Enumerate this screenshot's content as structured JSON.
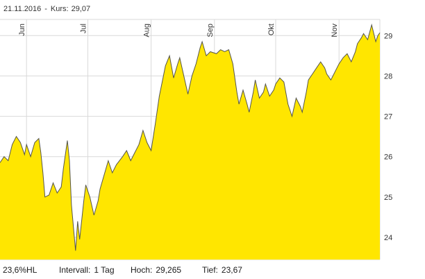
{
  "header": {
    "date": "21.11.2016",
    "separator": "-",
    "price_label": "Kurs:",
    "price_value": "29,07"
  },
  "footer": {
    "hl_range": "23,6%HL",
    "interval_label": "Intervall:",
    "interval_value": "1 Tag",
    "high_label": "Hoch:",
    "high_value": "29,265",
    "low_label": "Tief:",
    "low_value": "23,67"
  },
  "chart_data": {
    "type": "area",
    "title": "",
    "xlabel": "",
    "ylabel": "",
    "grid": true,
    "month_labels_vertical": true,
    "y_axis_position": "right",
    "x_domain": [
      0,
      186
    ],
    "y_domain": [
      23.45,
      29.4
    ],
    "y_ticks": [
      24,
      25,
      26,
      27,
      28,
      29
    ],
    "month_ticks": [
      {
        "label": "Jun",
        "t": 13
      },
      {
        "label": "Jul",
        "t": 43
      },
      {
        "label": "Aug",
        "t": 74
      },
      {
        "label": "Sep",
        "t": 105
      },
      {
        "label": "Okt",
        "t": 135
      },
      {
        "label": "Nov",
        "t": 166
      }
    ],
    "high": 29.265,
    "low": 23.67,
    "last": 29.07,
    "last_date": "21.11.2016",
    "interval": "1 Tag",
    "colors": {
      "area_fill": "#ffe600",
      "line": "#55554d",
      "grid": "#d9d9d9",
      "text": "#333333"
    },
    "series": [
      {
        "name": "Kurs",
        "points": [
          [
            0,
            25.85
          ],
          [
            2,
            26.0
          ],
          [
            4,
            25.9
          ],
          [
            6,
            26.3
          ],
          [
            8,
            26.5
          ],
          [
            10,
            26.35
          ],
          [
            12,
            26.05
          ],
          [
            13,
            26.3
          ],
          [
            15,
            26.0
          ],
          [
            17,
            26.35
          ],
          [
            19,
            26.45
          ],
          [
            20,
            26.1
          ],
          [
            21,
            25.6
          ],
          [
            22,
            25.0
          ],
          [
            24,
            25.05
          ],
          [
            26,
            25.35
          ],
          [
            28,
            25.1
          ],
          [
            30,
            25.25
          ],
          [
            31,
            25.7
          ],
          [
            33,
            26.4
          ],
          [
            34,
            25.9
          ],
          [
            35,
            24.8
          ],
          [
            37,
            23.67
          ],
          [
            38,
            24.4
          ],
          [
            39,
            23.95
          ],
          [
            41,
            24.9
          ],
          [
            42,
            25.3
          ],
          [
            44,
            25.0
          ],
          [
            46,
            24.55
          ],
          [
            48,
            24.9
          ],
          [
            49,
            25.2
          ],
          [
            51,
            25.55
          ],
          [
            53,
            25.9
          ],
          [
            55,
            25.6
          ],
          [
            57,
            25.8
          ],
          [
            60,
            26.0
          ],
          [
            62,
            26.15
          ],
          [
            64,
            25.9
          ],
          [
            66,
            26.1
          ],
          [
            68,
            26.3
          ],
          [
            70,
            26.65
          ],
          [
            72,
            26.35
          ],
          [
            74,
            26.15
          ],
          [
            76,
            26.8
          ],
          [
            78,
            27.5
          ],
          [
            80,
            28.0
          ],
          [
            81,
            28.25
          ],
          [
            83,
            28.5
          ],
          [
            85,
            27.95
          ],
          [
            87,
            28.3
          ],
          [
            88,
            28.45
          ],
          [
            90,
            28.0
          ],
          [
            92,
            27.55
          ],
          [
            94,
            28.0
          ],
          [
            96,
            28.3
          ],
          [
            98,
            28.7
          ],
          [
            99,
            28.85
          ],
          [
            101,
            28.5
          ],
          [
            103,
            28.6
          ],
          [
            106,
            28.55
          ],
          [
            108,
            28.65
          ],
          [
            110,
            28.6
          ],
          [
            112,
            28.65
          ],
          [
            114,
            28.3
          ],
          [
            116,
            27.6
          ],
          [
            117,
            27.3
          ],
          [
            119,
            27.65
          ],
          [
            121,
            27.3
          ],
          [
            122,
            27.1
          ],
          [
            124,
            27.6
          ],
          [
            125,
            27.9
          ],
          [
            127,
            27.45
          ],
          [
            129,
            27.6
          ],
          [
            130,
            27.8
          ],
          [
            132,
            27.5
          ],
          [
            134,
            27.65
          ],
          [
            135,
            27.8
          ],
          [
            137,
            27.95
          ],
          [
            139,
            27.85
          ],
          [
            141,
            27.3
          ],
          [
            143,
            27.0
          ],
          [
            145,
            27.45
          ],
          [
            147,
            27.25
          ],
          [
            148,
            27.1
          ],
          [
            150,
            27.6
          ],
          [
            151,
            27.9
          ],
          [
            153,
            28.05
          ],
          [
            155,
            28.2
          ],
          [
            157,
            28.35
          ],
          [
            159,
            28.2
          ],
          [
            160,
            28.05
          ],
          [
            162,
            27.9
          ],
          [
            163,
            28.0
          ],
          [
            165,
            28.2
          ],
          [
            166,
            28.3
          ],
          [
            168,
            28.45
          ],
          [
            170,
            28.55
          ],
          [
            172,
            28.35
          ],
          [
            174,
            28.6
          ],
          [
            175,
            28.8
          ],
          [
            177,
            28.95
          ],
          [
            178,
            29.05
          ],
          [
            180,
            28.9
          ],
          [
            182,
            29.265
          ],
          [
            184,
            28.85
          ],
          [
            185,
            29.0
          ],
          [
            186,
            29.07
          ]
        ]
      }
    ]
  }
}
